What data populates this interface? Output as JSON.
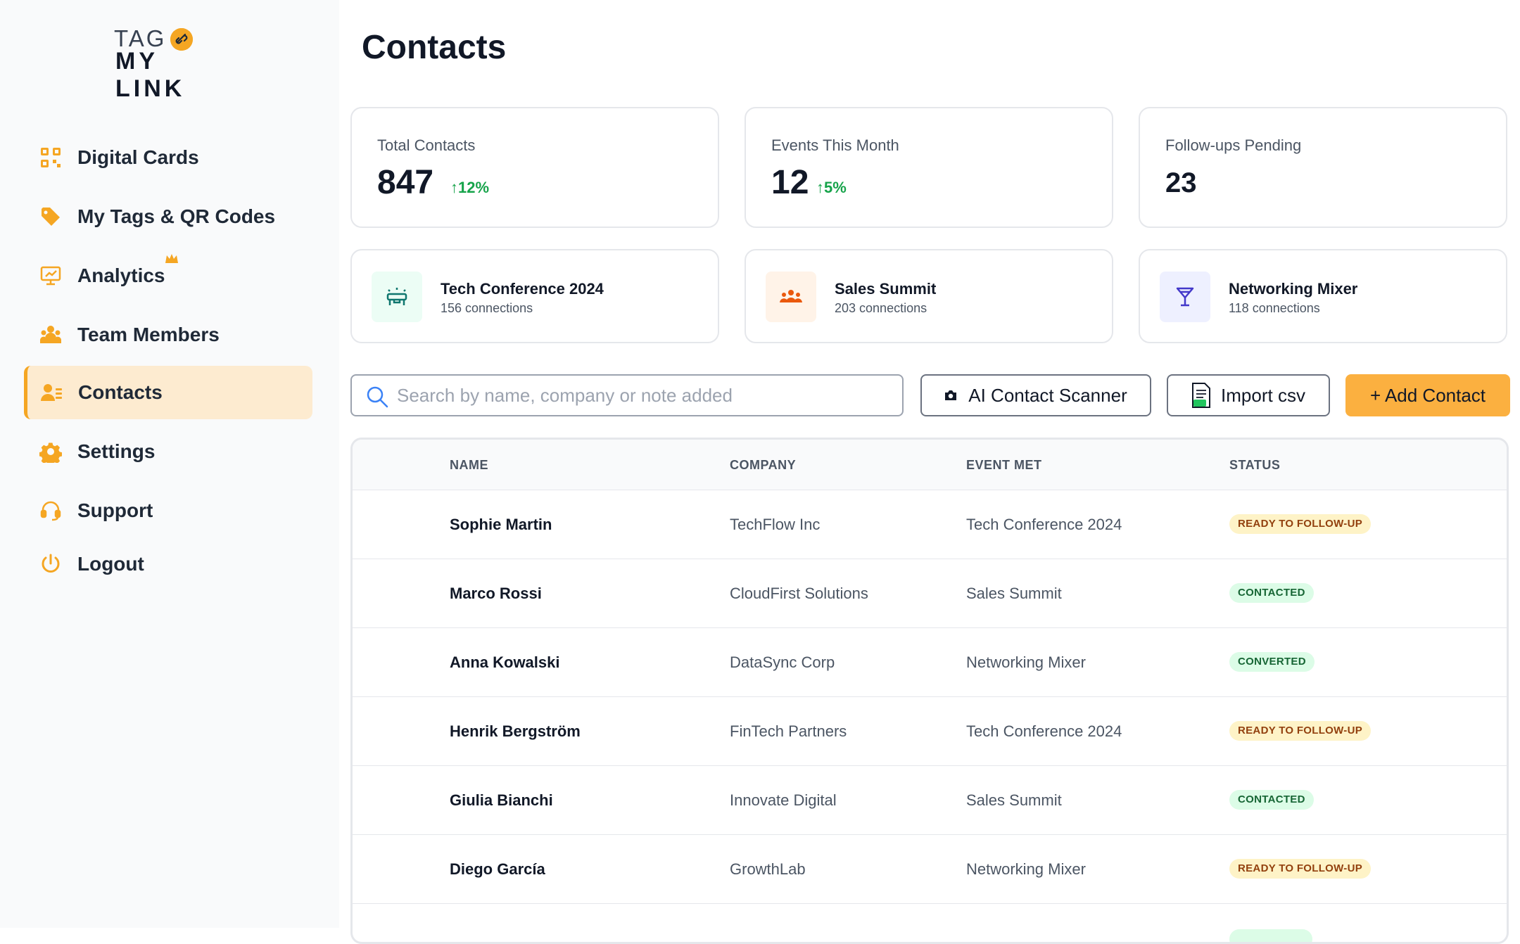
{
  "brand": {
    "line1": "TAG",
    "line2": "MY LINK"
  },
  "sidebar": {
    "items": [
      {
        "label": "Digital Cards",
        "icon": "qr-grid-icon"
      },
      {
        "label": "My Tags & QR Codes",
        "icon": "tag-icon"
      },
      {
        "label": "Analytics",
        "icon": "monitor-chart-icon",
        "badge": "crown-icon"
      },
      {
        "label": "Team Members",
        "icon": "team-icon"
      },
      {
        "label": "Contacts",
        "icon": "contact-icon",
        "active": true
      },
      {
        "label": "Settings",
        "icon": "gear-icon"
      },
      {
        "label": "Support",
        "icon": "headset-icon"
      },
      {
        "label": "Logout",
        "icon": "power-icon"
      }
    ]
  },
  "page": {
    "title": "Contacts"
  },
  "stats": [
    {
      "label": "Total Contacts",
      "value": "847",
      "change": "12%"
    },
    {
      "label": "Events This Month",
      "value": "12",
      "change": "5%"
    },
    {
      "label": "Follow-ups Pending",
      "value": "23"
    }
  ],
  "events": [
    {
      "name": "Tech Conference 2024",
      "sub": "156 connections",
      "icon": "conference-icon",
      "bg": "#ecfdf5"
    },
    {
      "name": "Sales Summit",
      "sub": "203 connections",
      "icon": "people-group-icon",
      "bg": "#fff3e8"
    },
    {
      "name": "Networking Mixer",
      "sub": "118 connections",
      "icon": "cocktail-icon",
      "bg": "#eef0ff"
    }
  ],
  "toolbar": {
    "search_placeholder": "Search by name, company or note added",
    "scanner_label": "AI Contact Scanner",
    "import_label": "Import csv",
    "add_label": "+ Add Contact"
  },
  "table": {
    "headers": [
      "NAME",
      "COMPANY",
      "EVENT MET",
      "STATUS"
    ],
    "rows": [
      {
        "name": "Sophie Martin",
        "company": "TechFlow Inc",
        "event": "Tech Conference 2024",
        "status": "READY TO FOLLOW-UP",
        "kind": "ready"
      },
      {
        "name": "Marco Rossi",
        "company": "CloudFirst Solutions",
        "event": "Sales Summit",
        "status": "CONTACTED",
        "kind": "contacted"
      },
      {
        "name": "Anna Kowalski",
        "company": "DataSync Corp",
        "event": "Networking Mixer",
        "status": "CONVERTED",
        "kind": "converted"
      },
      {
        "name": "Henrik Bergström",
        "company": "FinTech Partners",
        "event": "Tech Conference 2024",
        "status": "READY TO FOLLOW-UP",
        "kind": "ready"
      },
      {
        "name": "Giulia Bianchi",
        "company": "Innovate Digital",
        "event": "Sales Summit",
        "status": "CONTACTED",
        "kind": "contacted"
      },
      {
        "name": "Diego García",
        "company": "GrowthLab",
        "event": "Networking Mixer",
        "status": "READY TO FOLLOW-UP",
        "kind": "ready"
      }
    ]
  },
  "colors": {
    "accent": "#fbb040",
    "active_bg": "#fdebd0",
    "positive": "#16a34a"
  }
}
